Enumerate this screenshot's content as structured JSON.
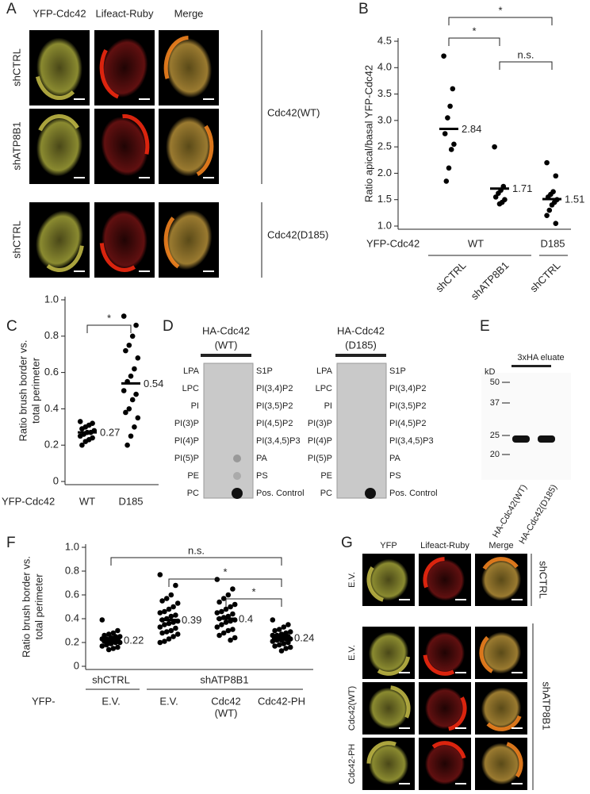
{
  "panel_labels": [
    "A",
    "B",
    "C",
    "D",
    "E",
    "F",
    "G"
  ],
  "panel_a": {
    "columns": [
      "YFP-Cdc42",
      "Lifeact-Ruby",
      "Merge"
    ],
    "rows": [
      "shCTRL",
      "shATP8B1",
      "shCTRL"
    ],
    "groups": [
      "Cdc42(WT)",
      "Cdc42(D185)"
    ]
  },
  "chart_data": [
    {
      "type": "strip",
      "ylabel": "Ratio apical/basal YFP-Cdc42",
      "ylim": [
        1.0,
        4.5
      ],
      "yticks": [
        {
          "value": 1,
          "label": "1.0"
        },
        1.5,
        {
          "value": 2,
          "label": "2.0"
        },
        2.5,
        {
          "value": 3,
          "label": "3.0"
        },
        3.5,
        {
          "value": 4,
          "label": "4.0"
        },
        4.5
      ],
      "groups": [
        {
          "values": [
            4.22,
            3.6,
            3.27,
            3.05,
            2.75,
            2.55,
            2.45,
            2.1,
            1.85
          ],
          "mean": 2.84
        },
        {
          "values": [
            2.5,
            1.75,
            1.68,
            1.62,
            1.55,
            1.5,
            1.45,
            1.42
          ],
          "mean": 1.71
        },
        {
          "values": [
            2.2,
            1.95,
            1.65,
            1.6,
            1.55,
            1.5,
            1.45,
            1.4,
            1.3,
            1.2,
            1.05
          ],
          "mean": 1.51
        }
      ],
      "comparisons": [
        "*",
        "*",
        "n.s."
      ],
      "x_label": "YFP-Cdc42",
      "constructs": [
        "WT",
        "D185"
      ],
      "categories": [
        "shCTRL",
        "shATP8B1",
        "shCTRL"
      ]
    },
    {
      "type": "strip",
      "ylabel": [
        "Ratio brush border vs.",
        "total perimeter"
      ],
      "ylim": [
        0,
        1.0
      ],
      "yticks": [
        0,
        0.2,
        0.4,
        0.6,
        0.8,
        {
          "value": 1,
          "label": "1.0"
        }
      ],
      "groups": [
        {
          "values": [
            0.33,
            0.32,
            0.31,
            0.3,
            0.29,
            0.28,
            0.27,
            0.27,
            0.26,
            0.25,
            0.24,
            0.23,
            0.22,
            0.2
          ],
          "mean": 0.27
        },
        {
          "values": [
            0.91,
            0.86,
            0.8,
            0.75,
            0.72,
            0.68,
            0.62,
            0.58,
            0.55,
            0.5,
            0.48,
            0.45,
            0.4,
            0.38,
            0.35,
            0.3,
            0.25,
            0.2
          ],
          "mean": 0.54
        }
      ],
      "comparisons": [
        "*"
      ],
      "x_label": "YFP-Cdc42",
      "categories": [
        "WT",
        "D185"
      ]
    },
    {
      "type": "strip",
      "ylabel": [
        "Ratio brush border vs.",
        "total perimeter"
      ],
      "ylim": [
        0,
        1.0
      ],
      "yticks": [
        0,
        0.2,
        0.4,
        0.6,
        0.8,
        {
          "value": 1,
          "label": "1.0"
        }
      ],
      "groups": [
        {
          "values": [
            0.39,
            0.3,
            0.28,
            0.27,
            0.26,
            0.25,
            0.25,
            0.24,
            0.23,
            0.23,
            0.22,
            0.22,
            0.21,
            0.21,
            0.2,
            0.2,
            0.19,
            0.18,
            0.17,
            0.16,
            0.15,
            0.14
          ],
          "mean": 0.22
        },
        {
          "values": [
            0.77,
            0.68,
            0.6,
            0.57,
            0.55,
            0.53,
            0.5,
            0.48,
            0.46,
            0.45,
            0.43,
            0.42,
            0.4,
            0.39,
            0.38,
            0.37,
            0.36,
            0.35,
            0.33,
            0.32,
            0.3,
            0.29,
            0.28,
            0.27,
            0.25,
            0.23,
            0.21,
            0.2
          ],
          "mean": 0.39
        },
        {
          "values": [
            0.73,
            0.65,
            0.6,
            0.57,
            0.54,
            0.52,
            0.5,
            0.48,
            0.46,
            0.45,
            0.44,
            0.42,
            0.41,
            0.4,
            0.39,
            0.38,
            0.37,
            0.35,
            0.33,
            0.31,
            0.3,
            0.28,
            0.26,
            0.24,
            0.22
          ],
          "mean": 0.4
        },
        {
          "values": [
            0.39,
            0.35,
            0.33,
            0.31,
            0.3,
            0.29,
            0.28,
            0.27,
            0.26,
            0.26,
            0.25,
            0.25,
            0.24,
            0.24,
            0.23,
            0.23,
            0.22,
            0.22,
            0.21,
            0.2,
            0.19,
            0.18,
            0.17,
            0.16,
            0.15,
            0.13
          ],
          "mean": 0.24
        }
      ],
      "comparisons": [
        "n.s.",
        "*",
        "*"
      ],
      "x_label": "YFP-",
      "shrna_groups": [
        "shCTRL",
        "shATP8B1"
      ],
      "categories": [
        [
          "E.V."
        ],
        [
          "E.V."
        ],
        [
          "Cdc42",
          "(WT)"
        ],
        [
          "Cdc42-PH"
        ]
      ]
    }
  ],
  "panel_d": {
    "blots": [
      {
        "title": "HA-Cdc42",
        "variant": "(WT)",
        "left_lipids": [
          "LPA",
          "LPC",
          "PI",
          "PI(3)P",
          "PI(4)P",
          "PI(5)P",
          "PE",
          "PC"
        ],
        "right_lipids": [
          "S1P",
          "PI(3,4)P2",
          "PI(3,5)P2",
          "PI(4,5)P2",
          "PI(3,4,5)P3",
          "PA",
          "PS",
          "Pos. Control"
        ]
      },
      {
        "title": "HA-Cdc42",
        "variant": "(D185)",
        "left_lipids": [
          "LPA",
          "LPC",
          "PI",
          "PI(3)P",
          "PI(4)P",
          "PI(5)P",
          "PE",
          "PC"
        ],
        "right_lipids": [
          "S1P",
          "PI(3,4)P2",
          "PI(3,5)P2",
          "PI(4,5)P2",
          "PI(3,4,5)P3",
          "PA",
          "PS",
          "Pos. Control"
        ]
      }
    ]
  },
  "panel_e": {
    "unit": "kD",
    "markers": [
      50,
      37,
      25,
      20
    ],
    "header": "3xHA eluate",
    "lanes": [
      "HA-Cdc42(WT)",
      "HA-Cdc42(D185)"
    ]
  },
  "panel_g": {
    "columns": [
      "YFP",
      "Lifeact-Ruby",
      "Merge"
    ],
    "rows": [
      "E.V.",
      "E.V.",
      "Cdc42(WT)",
      "Cdc42-PH"
    ],
    "groups": [
      "shCTRL",
      "shATP8B1"
    ]
  }
}
